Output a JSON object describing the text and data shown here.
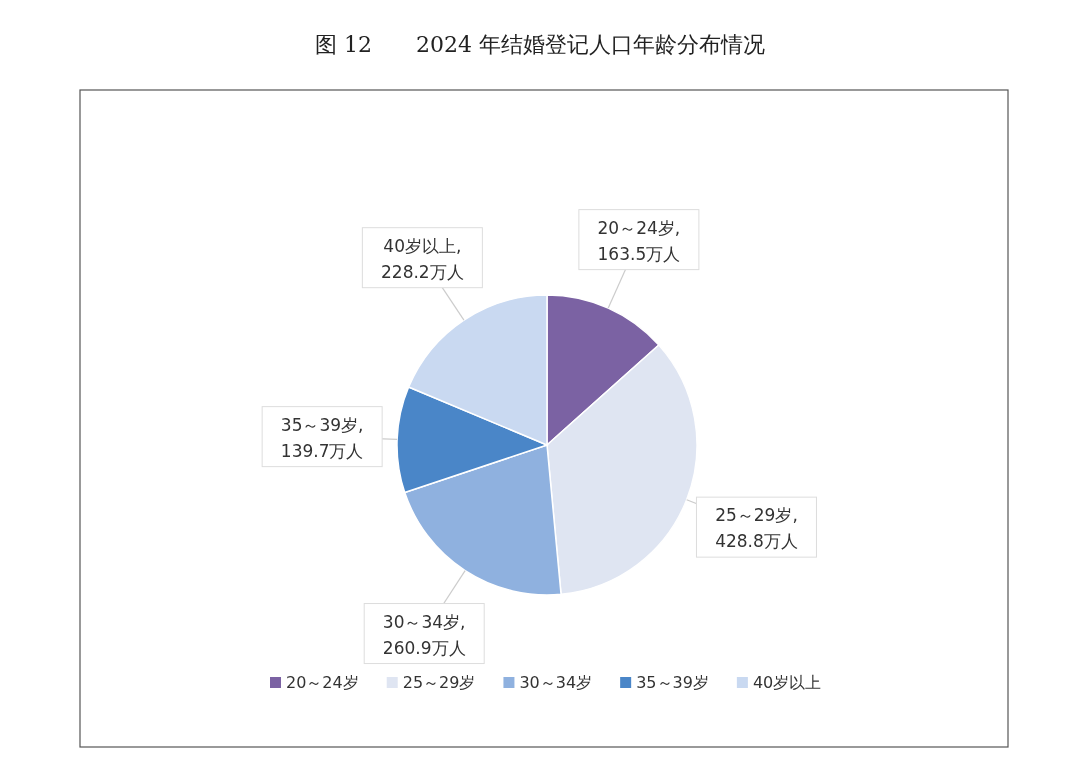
{
  "chart_data": {
    "type": "pie",
    "title": "图 12　　2024 年结婚登记人口年龄分布情况",
    "categories": [
      "20～24岁",
      "25～29岁",
      "30～34岁",
      "35～39岁",
      "40岁以上"
    ],
    "values": [
      163.5,
      428.8,
      260.9,
      139.7,
      228.2
    ],
    "value_labels": [
      "20～24岁,163.5万人",
      "25～29岁,428.8万人",
      "30～34岁,260.9万人",
      "35～39岁,139.7万人",
      "40岁以上,228.2万人"
    ],
    "colors": [
      "#7b62a3",
      "#dfe5f2",
      "#8fb1df",
      "#4a86c8",
      "#c9d9f1"
    ],
    "legend": "bottom"
  }
}
